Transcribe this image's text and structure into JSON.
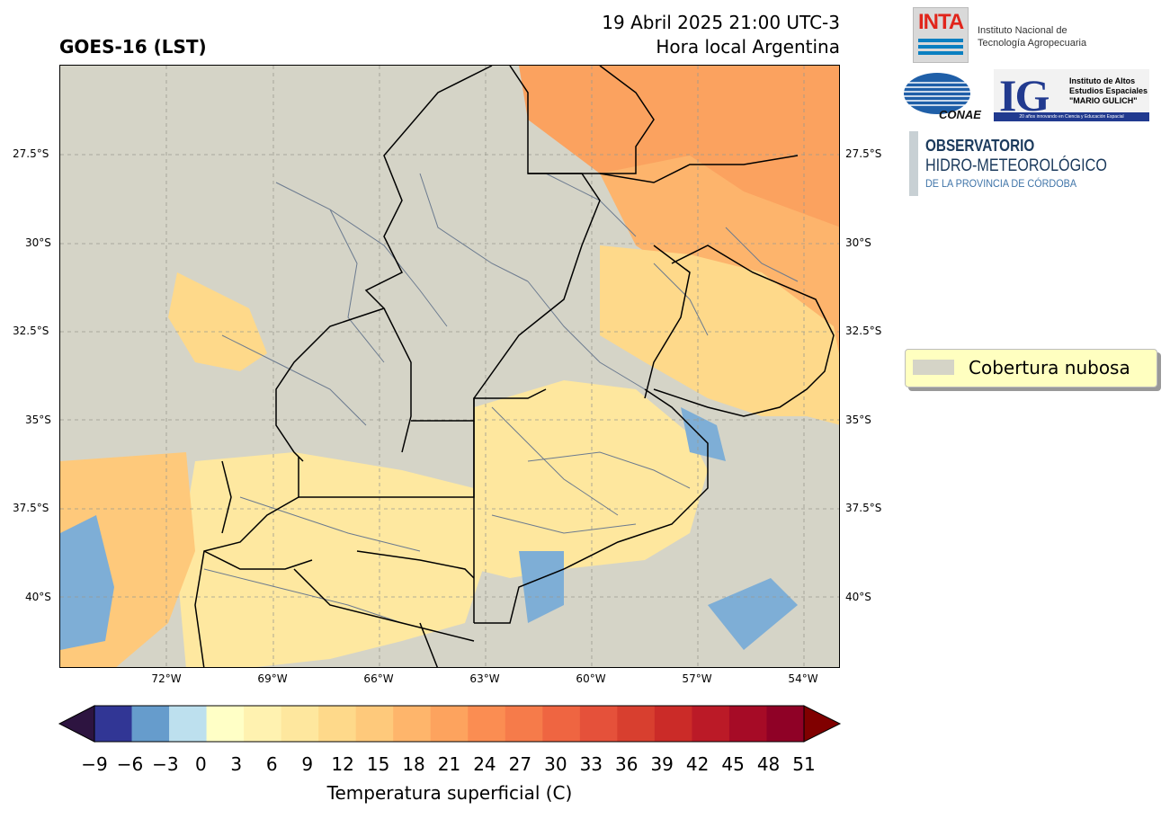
{
  "header": {
    "title_left": "GOES-16 (LST)",
    "title_right_line1": "19 Abril 2025 21:00 UTC-3",
    "title_right_line2": "Hora local Argentina"
  },
  "map": {
    "lat_ticks": [
      "27.5°S",
      "30°S",
      "32.5°S",
      "35°S",
      "37.5°S",
      "40°S"
    ],
    "lon_ticks": [
      "72°W",
      "69°W",
      "66°W",
      "63°W",
      "60°W",
      "57°W",
      "54°W"
    ],
    "cloud_color": "#d5d4c7",
    "border_color": "#6b7a8f"
  },
  "legend": {
    "label": "Cobertura nubosa",
    "swatch_color": "#d5d4c7"
  },
  "colorbar": {
    "label": "Temperatura superficial (C)",
    "ticks": [
      "−9",
      "−6",
      "−3",
      "0",
      "3",
      "6",
      "9",
      "12",
      "15",
      "18",
      "21",
      "24",
      "27",
      "30",
      "33",
      "36",
      "39",
      "42",
      "45",
      "48",
      "51"
    ],
    "under_color": "#2d1440",
    "over_color": "#800000",
    "colors": [
      "#313695",
      "#669ccc",
      "#bde0ee",
      "#ffffc6",
      "#fff2b0",
      "#fee79e",
      "#fed98a",
      "#fec97b",
      "#feb56b",
      "#fda35e",
      "#fb8d52",
      "#f67b4a",
      "#ef6541",
      "#e5513a",
      "#d83f2f",
      "#cb2b28",
      "#bb1a27",
      "#a60b26",
      "#8f0126"
    ]
  },
  "logos": {
    "inta": {
      "mark": "INTA",
      "text_line1": "Instituto Nacional de",
      "text_line2": "Tecnología Agropecuaria"
    },
    "conae": {
      "mark": "CONAE"
    },
    "ig": {
      "mark": "IG",
      "line1": "Instituto de Altos",
      "line2": "Estudios Espaciales",
      "line3": "\"MARIO GULICH\"",
      "band": "20 años innovando en Ciencia y Educación Espacial"
    },
    "observatorio": {
      "line1": "OBSERVATORIO",
      "line2": "HIDRO-METEOROLÓGICO",
      "line3": "DE LA PROVINCIA DE CÓRDOBA"
    }
  }
}
